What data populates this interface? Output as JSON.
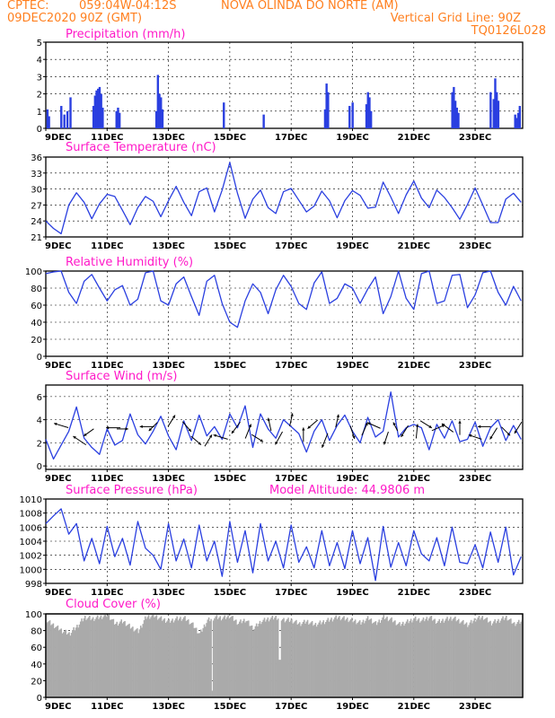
{
  "header": {
    "source": "CPTEC:",
    "coords": "059:04W-04:12S",
    "location": "NOVA OLINDA DO NORTE (AM)",
    "date": "09DEC2020 90Z (GMT)",
    "grid_note": "Vertical Grid Line: 90Z",
    "model_id": "TQ0126L028"
  },
  "colors": {
    "header": "#ff7f1e",
    "title": "#ff19c8",
    "series": "#2a3fe0",
    "cloud": "#aaaaaa",
    "arrow": "#000000"
  },
  "x_ticks": [
    "9DEC",
    "11DEC",
    "13DEC",
    "15DEC",
    "17DEC",
    "19DEC",
    "21DEC",
    "23DEC"
  ],
  "chart_data": [
    {
      "id": "precip",
      "type": "bar",
      "title": "Precipitation (mm/h)",
      "ylim": [
        0,
        5
      ],
      "yticks": [
        0,
        1,
        2,
        3,
        4,
        5
      ],
      "x_unit": "days since 9DEC",
      "x": [
        0.05,
        0.1,
        0.5,
        0.6,
        0.7,
        0.8,
        1.55,
        1.6,
        1.65,
        1.7,
        1.75,
        1.8,
        1.85,
        2.3,
        2.35,
        2.4,
        3.6,
        3.65,
        3.7,
        3.75,
        3.8,
        5.8,
        7.1,
        9.1,
        9.15,
        9.2,
        9.9,
        10.0,
        10.45,
        10.5,
        10.55,
        10.6,
        13.25,
        13.3,
        13.35,
        13.4,
        13.45,
        14.5,
        14.6,
        14.65,
        14.7,
        14.75,
        15.3,
        15.35,
        15.4,
        15.45
      ],
      "values": [
        1.1,
        0.7,
        1.3,
        0.8,
        1.0,
        1.8,
        1.3,
        1.9,
        2.2,
        2.3,
        2.4,
        2.0,
        1.2,
        1.0,
        1.2,
        0.9,
        1.0,
        3.1,
        2.0,
        1.8,
        1.1,
        1.5,
        0.8,
        1.1,
        2.6,
        2.1,
        1.3,
        1.5,
        1.4,
        2.1,
        1.8,
        1.0,
        2.1,
        2.4,
        1.6,
        1.2,
        0.9,
        2.1,
        1.7,
        2.9,
        2.1,
        1.6,
        0.8,
        0.6,
        0.9,
        1.3
      ]
    },
    {
      "id": "temp",
      "type": "line",
      "title": "Surface Temperature (nC)",
      "ylim": [
        21,
        36
      ],
      "yticks": [
        21,
        24,
        27,
        30,
        33,
        36
      ],
      "x_unit": "days since 9DEC",
      "x": [
        0,
        0.25,
        0.5,
        0.75,
        1,
        1.25,
        1.5,
        1.75,
        2,
        2.25,
        2.5,
        2.75,
        3,
        3.25,
        3.5,
        3.75,
        4,
        4.25,
        4.5,
        4.75,
        5,
        5.25,
        5.5,
        5.75,
        6,
        6.25,
        6.5,
        6.75,
        7,
        7.25,
        7.5,
        7.75,
        8,
        8.25,
        8.5,
        8.75,
        9,
        9.25,
        9.5,
        9.75,
        10,
        10.25,
        10.5,
        10.75,
        11,
        11.25,
        11.5,
        11.75,
        12,
        12.25,
        12.5,
        12.75,
        13,
        13.25,
        13.5,
        13.75,
        14,
        14.25,
        14.5,
        14.75,
        15,
        15.25,
        15.5
      ],
      "values": [
        24,
        22.6,
        21.6,
        27,
        29.3,
        27.5,
        24.4,
        27.2,
        29,
        28.6,
        26,
        23.3,
        26.5,
        28.6,
        27.7,
        24.8,
        27.8,
        30.5,
        27.5,
        25,
        29.5,
        30.2,
        25.7,
        29.8,
        35,
        29.2,
        24.5,
        28.1,
        29.8,
        26.5,
        25.4,
        29.5,
        30.1,
        27.9,
        25.7,
        26.8,
        29.6,
        27.8,
        24.6,
        27.8,
        29.7,
        28.8,
        26.4,
        26.6,
        31.3,
        28.5,
        25.4,
        28.9,
        31.5,
        28.3,
        26.5,
        29.8,
        28.4,
        26.5,
        24.3,
        27.1,
        30.2,
        27,
        23.7,
        23.7,
        28.1,
        29.2,
        27.5
      ]
    },
    {
      "id": "rh",
      "type": "line",
      "title": "Relative Humidity (%)",
      "ylim": [
        0,
        100
      ],
      "yticks": [
        0,
        20,
        40,
        60,
        80,
        100
      ],
      "x_unit": "days since 9DEC",
      "x": [
        0,
        0.25,
        0.5,
        0.75,
        1,
        1.25,
        1.5,
        1.75,
        2,
        2.25,
        2.5,
        2.75,
        3,
        3.25,
        3.5,
        3.75,
        4,
        4.25,
        4.5,
        4.75,
        5,
        5.25,
        5.5,
        5.75,
        6,
        6.25,
        6.5,
        6.75,
        7,
        7.25,
        7.5,
        7.75,
        8,
        8.25,
        8.5,
        8.75,
        9,
        9.25,
        9.5,
        9.75,
        10,
        10.25,
        10.5,
        10.75,
        11,
        11.25,
        11.5,
        11.75,
        12,
        12.25,
        12.5,
        12.75,
        13,
        13.25,
        13.5,
        13.75,
        14,
        14.25,
        14.5,
        14.75,
        15,
        15.25,
        15.5
      ],
      "values": [
        97,
        99,
        100,
        75,
        62,
        88,
        96,
        80,
        65,
        78,
        83,
        60,
        67,
        98,
        100,
        65,
        60,
        85,
        93,
        70,
        48,
        88,
        95,
        62,
        40,
        34,
        65,
        85,
        75,
        50,
        78,
        95,
        82,
        62,
        55,
        86,
        99,
        62,
        68,
        85,
        80,
        62,
        79,
        93,
        50,
        70,
        100,
        68,
        55,
        97,
        100,
        62,
        65,
        95,
        96,
        57,
        72,
        98,
        100,
        75,
        60,
        82,
        65
      ]
    },
    {
      "id": "wind",
      "type": "line",
      "title": "Surface Wind (m/s)",
      "ylim": [
        -0.3,
        7
      ],
      "yticks": [
        0,
        2,
        4,
        6
      ],
      "x_unit": "days since 9DEC",
      "x": [
        0,
        0.25,
        0.5,
        0.75,
        1,
        1.25,
        1.5,
        1.75,
        2,
        2.25,
        2.5,
        2.75,
        3,
        3.25,
        3.5,
        3.75,
        4,
        4.25,
        4.5,
        4.75,
        5,
        5.25,
        5.5,
        5.75,
        6,
        6.25,
        6.5,
        6.75,
        7,
        7.25,
        7.5,
        7.75,
        8,
        8.25,
        8.5,
        8.75,
        9,
        9.25,
        9.5,
        9.75,
        10,
        10.25,
        10.5,
        10.75,
        11,
        11.25,
        11.5,
        11.75,
        12,
        12.25,
        12.5,
        12.75,
        13,
        13.25,
        13.5,
        13.75,
        14,
        14.25,
        14.5,
        14.75,
        15,
        15.25,
        15.5
      ],
      "values": [
        2.3,
        0.6,
        1.8,
        3.0,
        5.1,
        2.4,
        1.6,
        1.0,
        3.2,
        1.8,
        2.2,
        4.5,
        2.7,
        1.9,
        3.0,
        4.3,
        2.6,
        1.4,
        3.9,
        2.2,
        4.4,
        2.6,
        3.4,
        2.3,
        4.5,
        3.3,
        5.2,
        1.6,
        4.5,
        3.2,
        2.4,
        4.0,
        3.4,
        2.8,
        1.2,
        3.0,
        4.0,
        2.2,
        3.5,
        4.4,
        3.0,
        2.0,
        4.2,
        2.5,
        3.0,
        6.4,
        2.5,
        3.3,
        3.6,
        3.3,
        1.4,
        3.6,
        2.4,
        3.9,
        2.1,
        2.3,
        3.8,
        1.7,
        3.3,
        4.0,
        2.2,
        3.5,
        2.3
      ],
      "arrow_x": [
        0.5,
        1.1,
        1.4,
        2.2,
        2.5,
        3.3,
        3.5,
        4.1,
        4.6,
        4.9,
        5.3,
        5.7,
        6.2,
        6.6,
        6.9,
        7.3,
        7.6,
        8.0,
        8.4,
        8.7,
        9.1,
        9.5,
        10.0,
        10.4,
        10.7,
        11.1,
        11.4,
        11.7,
        12.1,
        12.4,
        12.8,
        13.1,
        13.5,
        14.0,
        14.3,
        14.6,
        15.0,
        15.4
      ],
      "arrow_y": [
        3.5,
        2.2,
        2.9,
        3.3,
        3.2,
        3.4,
        3.4,
        3.9,
        3.4,
        2.2,
        2.2,
        2.5,
        3.3,
        3.0,
        2.4,
        3.6,
        2.4,
        4.0,
        2.7,
        3.6,
        2.2,
        3.9,
        2.9,
        3.2,
        3.5,
        2.4,
        3.4,
        3.0,
        3.0,
        3.6,
        3.3,
        3.3,
        3.3,
        2.5,
        3.4,
        2.8,
        3.0,
        3.3
      ],
      "arrow_u": [
        -1,
        -0.9,
        -0.7,
        -1,
        0.8,
        -1,
        -0.6,
        0.5,
        0.6,
        0.7,
        0.5,
        -1,
        -0.6,
        0.4,
        0.8,
        -0.2,
        -0.5,
        0.2,
        0,
        -0.7,
        -0.4,
        0.2,
        0.3,
        0.4,
        -0.9,
        -0.3,
        -0.3,
        -0.5,
        0.1,
        0.8,
        0.9,
        -0.8,
        0,
        -0.9,
        -0.9,
        -0.5,
        0.6,
        -0.5
      ],
      "arrow_v": [
        0.3,
        0.6,
        -0.5,
        0,
        0,
        0,
        -0.6,
        0.8,
        -0.7,
        -0.6,
        0.8,
        0.3,
        -0.8,
        1,
        -0.5,
        0.9,
        -0.9,
        0.9,
        1,
        -0.6,
        -1,
        0.9,
        -0.9,
        0.9,
        0.4,
        -0.9,
        0.6,
        -0.8,
        1,
        -0.5,
        0.4,
        0.6,
        1,
        0.3,
        0,
        -0.8,
        -0.6,
        -0.8
      ]
    },
    {
      "id": "pressure",
      "type": "line",
      "title": "Surface Pressure (hPa)",
      "note": "Model Altitude: 44.9806 m",
      "ylim": [
        998,
        1010
      ],
      "yticks": [
        998,
        1000,
        1002,
        1004,
        1006,
        1008,
        1010
      ],
      "x_unit": "days since 9DEC",
      "x": [
        0,
        0.25,
        0.5,
        0.75,
        1,
        1.25,
        1.5,
        1.75,
        2,
        2.25,
        2.5,
        2.75,
        3,
        3.25,
        3.5,
        3.75,
        4,
        4.25,
        4.5,
        4.75,
        5,
        5.25,
        5.5,
        5.75,
        6,
        6.25,
        6.5,
        6.75,
        7,
        7.25,
        7.5,
        7.75,
        8,
        8.25,
        8.5,
        8.75,
        9,
        9.25,
        9.5,
        9.75,
        10,
        10.25,
        10.5,
        10.75,
        11,
        11.25,
        11.5,
        11.75,
        12,
        12.25,
        12.5,
        12.75,
        13,
        13.25,
        13.5,
        13.75,
        14,
        14.25,
        14.5,
        14.75,
        15,
        15.25,
        15.5
      ],
      "values": [
        1006.5,
        1007.6,
        1008.6,
        1005,
        1006.5,
        1001.2,
        1004.4,
        1000.8,
        1006.1,
        1001.8,
        1004.4,
        1000.6,
        1006.8,
        1003,
        1002,
        1000,
        1006.5,
        1001.2,
        1004.3,
        1000.2,
        1006.3,
        1001.2,
        1004,
        999,
        1006.8,
        1001,
        1005.5,
        999.5,
        1006.5,
        1001.2,
        1004,
        1000.2,
        1006.3,
        1001,
        1003.2,
        1000.2,
        1005.5,
        1000.5,
        1003.8,
        1000.1,
        1005.5,
        1000.8,
        1004.5,
        998.4,
        1006.1,
        1000.3,
        1003.8,
        1000.5,
        1005.5,
        1002.2,
        1001.2,
        1004.5,
        1000.5,
        1006,
        1001,
        1000.8,
        1003.5,
        1000.2,
        1005.3,
        1001,
        1006,
        999.2,
        1001.8
      ]
    },
    {
      "id": "cloud",
      "type": "area",
      "title": "Cloud Cover (%)",
      "ylim": [
        0,
        100
      ],
      "yticks": [
        0,
        20,
        40,
        60,
        80,
        100
      ],
      "x_unit": "days since 9DEC",
      "x": [
        0,
        0.25,
        0.5,
        0.75,
        1,
        1.25,
        1.5,
        1.75,
        2,
        2.25,
        2.5,
        2.75,
        3,
        3.25,
        3.5,
        3.75,
        4,
        4.25,
        4.5,
        4.75,
        5,
        5.25,
        5.5,
        5.75,
        6,
        6.25,
        6.5,
        6.75,
        7,
        7.25,
        7.5,
        7.75,
        8,
        8.25,
        8.5,
        8.75,
        9,
        9.25,
        9.5,
        9.75,
        10,
        10.25,
        10.5,
        10.75,
        11,
        11.25,
        11.5,
        11.75,
        12,
        12.25,
        12.5,
        12.75,
        13,
        13.25,
        13.5,
        13.75,
        14,
        14.25,
        14.5,
        14.75,
        15,
        15.25,
        15.5
      ],
      "values": [
        92,
        86,
        80,
        76,
        85,
        96,
        94,
        96,
        99,
        88,
        91,
        84,
        79,
        96,
        98,
        94,
        91,
        94,
        95,
        88,
        76,
        92,
        96,
        95,
        97,
        89,
        93,
        82,
        91,
        94,
        96,
        93,
        92,
        88,
        91,
        87,
        90,
        93,
        96,
        94,
        92,
        89,
        95,
        88,
        96,
        93,
        87,
        90,
        94,
        92,
        96,
        90,
        93,
        95,
        91,
        87,
        94,
        96,
        89,
        92,
        96,
        88,
        91
      ],
      "dips_x": [
        5.4,
        7.6
      ],
      "dips_val": [
        8,
        45
      ]
    }
  ]
}
